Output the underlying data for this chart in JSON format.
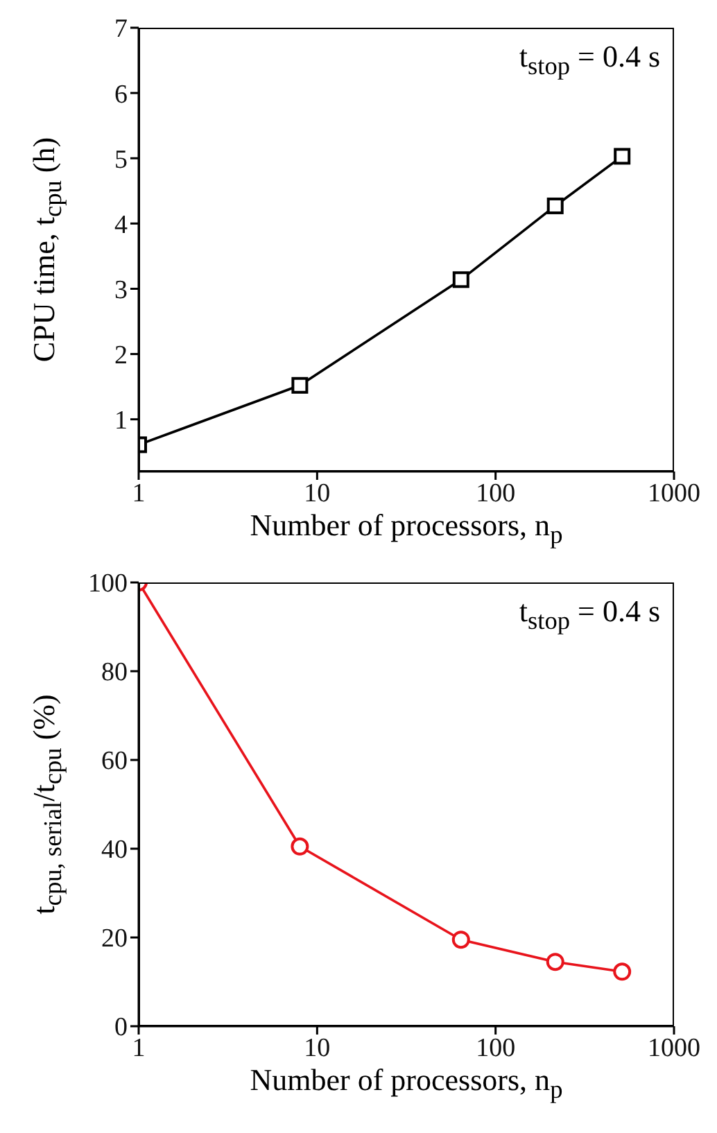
{
  "chart_data": [
    {
      "type": "line",
      "xlabel": "Number of processors, n$_{p}$",
      "ylabel": "CPU time, t$_{cpu}$ (h)",
      "annotations": [
        "t$_{stop}$ = 0.4 s"
      ],
      "x": [
        1,
        8,
        64,
        216,
        512
      ],
      "log": "x",
      "xlim": [
        1,
        1000
      ],
      "xticks": [
        1,
        10,
        100,
        1000
      ],
      "ylim": [
        0.2,
        7
      ],
      "yticks": [
        1,
        2,
        3,
        4,
        5,
        6,
        7
      ],
      "marker": "square",
      "line_style": "solid",
      "series": [
        {
          "color": "#000000",
          "values": [
            0.61,
            1.52,
            3.14,
            4.27,
            5.03
          ]
        }
      ]
    },
    {
      "type": "line",
      "xlabel": "Number of processors, n$_{p}$",
      "ylabel": "t$_{cpu, serial}$/t$_{cpu}$ (%)",
      "annotations": [
        "t$_{stop}$ = 0.4 s"
      ],
      "x": [
        1,
        8,
        64,
        216,
        512
      ],
      "log": "x",
      "xlim": [
        1,
        1000
      ],
      "xticks": [
        1,
        10,
        100,
        1000
      ],
      "ylim": [
        0,
        100
      ],
      "yticks": [
        0,
        20,
        40,
        60,
        80,
        100
      ],
      "marker": "circle",
      "line_style": "solid",
      "series": [
        {
          "color": "#e8141c",
          "values": [
            100,
            40.5,
            19.5,
            14.5,
            12.3
          ]
        }
      ]
    }
  ]
}
